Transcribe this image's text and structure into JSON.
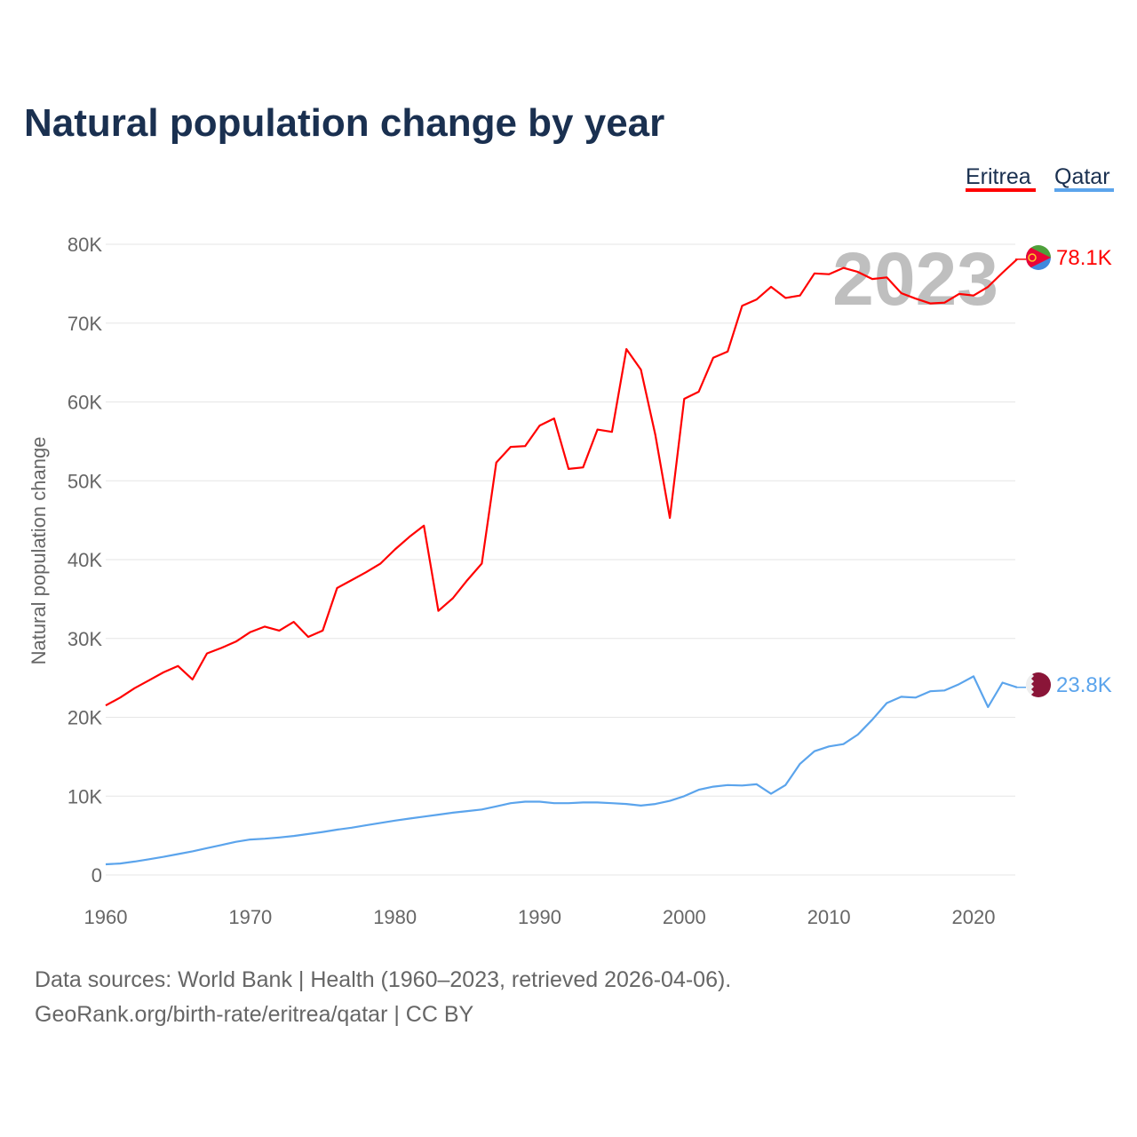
{
  "chart_data": {
    "type": "line",
    "title": "Natural population change by year",
    "ylabel": "Natural population change",
    "xlabel": "",
    "year_watermark": "2023",
    "xlim": [
      1960,
      2023
    ],
    "ylim": [
      0,
      80000
    ],
    "x_ticks": [
      "1960",
      "1970",
      "1980",
      "1990",
      "2000",
      "2010",
      "2020"
    ],
    "y_ticks": [
      {
        "value": 0,
        "label": "0"
      },
      {
        "value": 10000,
        "label": "10K"
      },
      {
        "value": 20000,
        "label": "20K"
      },
      {
        "value": 30000,
        "label": "30K"
      },
      {
        "value": 40000,
        "label": "40K"
      },
      {
        "value": 50000,
        "label": "50K"
      },
      {
        "value": 60000,
        "label": "60K"
      },
      {
        "value": 70000,
        "label": "70K"
      },
      {
        "value": 80000,
        "label": "80K"
      }
    ],
    "grid": true,
    "legend_position": "top-right",
    "x_start": 1960,
    "series": [
      {
        "name": "Eritrea",
        "color": "#ff0000",
        "end_label": "78.1K",
        "flag": "eritrea-flag",
        "values": [
          21500,
          22500,
          23700,
          24700,
          25700,
          26500,
          24800,
          28100,
          28800,
          29600,
          30800,
          31500,
          31000,
          32100,
          30200,
          31000,
          36400,
          37400,
          38400,
          39500,
          41300,
          42900,
          44300,
          33500,
          35100,
          37400,
          39500,
          52300,
          54300,
          54400,
          57000,
          57900,
          51500,
          51700,
          56500,
          56200,
          66700,
          64100,
          55800,
          45300,
          60400,
          61300,
          65600,
          66400,
          72200,
          73000,
          74600,
          73200,
          73500,
          76300,
          76200,
          77000,
          76500,
          75600,
          75800,
          73800,
          73100,
          72500,
          72600,
          73700,
          73500,
          74600,
          76400,
          78100
        ]
      },
      {
        "name": "Qatar",
        "color": "#5ba4ec",
        "end_label": "23.8K",
        "flag": "qatar-flag",
        "values": [
          1350,
          1450,
          1700,
          2000,
          2300,
          2650,
          3000,
          3400,
          3800,
          4200,
          4500,
          4600,
          4750,
          4950,
          5200,
          5450,
          5750,
          6000,
          6300,
          6600,
          6900,
          7150,
          7400,
          7650,
          7900,
          8100,
          8300,
          8700,
          9100,
          9300,
          9300,
          9100,
          9100,
          9200,
          9200,
          9100,
          9000,
          8800,
          9000,
          9400,
          10000,
          10800,
          11200,
          11400,
          11350,
          11500,
          10300,
          11400,
          14100,
          15700,
          16300,
          16600,
          17800,
          19700,
          21800,
          22600,
          22500,
          23300,
          23400,
          24200,
          25200,
          21300,
          24400,
          23800
        ]
      }
    ]
  },
  "footer": {
    "line1": "Data sources: World Bank | Health (1960–2023, retrieved 2026-04-06).",
    "line2": "GeoRank.org/birth-rate/eritrea/qatar | CC BY"
  }
}
